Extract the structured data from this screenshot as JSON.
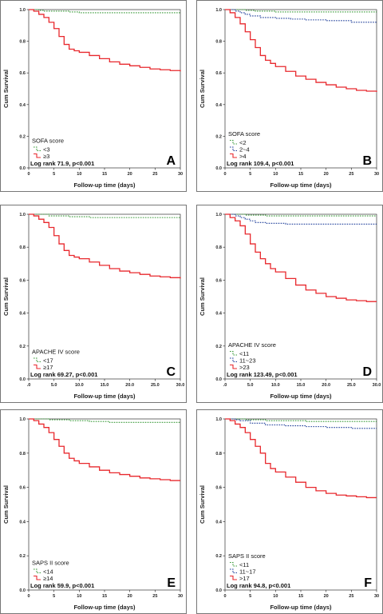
{
  "chart_data": [
    {
      "type": "line",
      "panel": "A",
      "xlabel": "Follow-up time (days)",
      "ylabel": "Cum Survival",
      "xlim": [
        0,
        30
      ],
      "ylim": [
        0.0,
        1.0
      ],
      "x_ticks": [
        "0",
        "5",
        "10",
        "15",
        "20",
        "25",
        "30"
      ],
      "y_ticks": [
        "0.0",
        "0.2",
        "0.4",
        "0.6",
        "0.8",
        "1.0"
      ],
      "legend_title": "SOFA score",
      "logrank": "Log rank 71.9, p<0.001",
      "series": [
        {
          "name": "<3",
          "color": "#3a9a3a",
          "dash": "dot",
          "x": [
            0,
            1,
            2,
            3,
            5,
            8,
            10,
            15,
            20,
            25,
            30
          ],
          "y": [
            1.0,
            1.0,
            0.995,
            0.99,
            0.99,
            0.985,
            0.98,
            0.98,
            0.98,
            0.98,
            0.98
          ]
        },
        {
          "name": "≥3",
          "color": "#e8282d",
          "dash": "solid",
          "x": [
            0,
            1,
            2,
            3,
            4,
            5,
            6,
            7,
            8,
            9,
            10,
            12,
            14,
            16,
            18,
            20,
            22,
            24,
            26,
            28,
            30
          ],
          "y": [
            1.0,
            0.99,
            0.97,
            0.95,
            0.92,
            0.88,
            0.83,
            0.78,
            0.75,
            0.74,
            0.73,
            0.71,
            0.69,
            0.67,
            0.655,
            0.645,
            0.635,
            0.625,
            0.62,
            0.615,
            0.61
          ]
        }
      ]
    },
    {
      "type": "line",
      "panel": "B",
      "xlabel": "Follow-up time (days)",
      "ylabel": "Cum Survival",
      "xlim": [
        0,
        30
      ],
      "ylim": [
        0.0,
        1.0
      ],
      "x_ticks": [
        "0",
        "5",
        "10",
        "15",
        "20",
        "25",
        "30"
      ],
      "y_ticks": [
        "0.0",
        "0.2",
        "0.4",
        "0.6",
        "0.8",
        "1.0"
      ],
      "legend_title": "SOFA score",
      "logrank": "Log rank 109.4, p<0.001",
      "series": [
        {
          "name": "<2",
          "color": "#3a9a3a",
          "dash": "dot",
          "x": [
            0,
            2,
            4,
            6,
            10,
            15,
            20,
            25,
            30
          ],
          "y": [
            1.0,
            1.0,
            0.995,
            0.99,
            0.985,
            0.985,
            0.985,
            0.985,
            0.985
          ]
        },
        {
          "name": "2~4",
          "color": "#1f3f9a",
          "dash": "dot",
          "x": [
            0,
            2,
            3,
            4,
            5,
            7,
            10,
            13,
            16,
            20,
            25,
            30
          ],
          "y": [
            1.0,
            0.99,
            0.98,
            0.97,
            0.96,
            0.95,
            0.945,
            0.94,
            0.935,
            0.93,
            0.92,
            0.915
          ]
        },
        {
          "name": ">4",
          "color": "#e8282d",
          "dash": "solid",
          "x": [
            0,
            1,
            2,
            3,
            4,
            5,
            6,
            7,
            8,
            9,
            10,
            12,
            14,
            16,
            18,
            20,
            22,
            24,
            26,
            28,
            30
          ],
          "y": [
            1.0,
            0.98,
            0.95,
            0.91,
            0.86,
            0.81,
            0.76,
            0.71,
            0.68,
            0.66,
            0.64,
            0.61,
            0.58,
            0.56,
            0.54,
            0.525,
            0.51,
            0.5,
            0.49,
            0.485,
            0.48
          ]
        }
      ]
    },
    {
      "type": "line",
      "panel": "C",
      "xlabel": "Follow-up time (days)",
      "ylabel": "Cum Survival",
      "xlim": [
        0,
        30
      ],
      "ylim": [
        0.0,
        1.0
      ],
      "x_ticks": [
        ".0",
        "5.0",
        "10.0",
        "15.0",
        "20.0",
        "25.0",
        "30.0"
      ],
      "y_ticks": [
        "0.0",
        "0.2",
        "0.4",
        "0.6",
        "0.8",
        "1.0"
      ],
      "legend_title": "APACHE IV score",
      "logrank": "Log rank 69.27,  p<0.001",
      "series": [
        {
          "name": "<17",
          "color": "#3a9a3a",
          "dash": "dot",
          "x": [
            0,
            2,
            4,
            8,
            12,
            16,
            20,
            25,
            30
          ],
          "y": [
            1.0,
            1.0,
            0.99,
            0.985,
            0.98,
            0.98,
            0.98,
            0.98,
            0.98
          ]
        },
        {
          "name": "≥17",
          "color": "#e8282d",
          "dash": "solid",
          "x": [
            0,
            1,
            2,
            3,
            4,
            5,
            6,
            7,
            8,
            9,
            10,
            12,
            14,
            16,
            18,
            20,
            22,
            24,
            26,
            28,
            30
          ],
          "y": [
            1.0,
            0.99,
            0.97,
            0.95,
            0.92,
            0.87,
            0.82,
            0.78,
            0.75,
            0.74,
            0.73,
            0.71,
            0.69,
            0.67,
            0.655,
            0.645,
            0.635,
            0.625,
            0.62,
            0.615,
            0.61
          ]
        }
      ]
    },
    {
      "type": "line",
      "panel": "D",
      "xlabel": "Follow-up time (days)",
      "ylabel": "Cum Survival",
      "xlim": [
        0,
        30
      ],
      "ylim": [
        0.0,
        1.0
      ],
      "x_ticks": [
        ".0",
        "5.0",
        "10.0",
        "15.0",
        "20.0",
        "25.0",
        "30.0"
      ],
      "y_ticks": [
        "0.0",
        "0.2",
        "0.4",
        "0.6",
        "0.8",
        "1.0"
      ],
      "legend_title": "APACHE IV score",
      "logrank": "Log rank 123.49,  p<0.001",
      "series": [
        {
          "name": "<11",
          "color": "#3a9a3a",
          "dash": "dot",
          "x": [
            0,
            2,
            4,
            8,
            12,
            16,
            20,
            25,
            30
          ],
          "y": [
            1.0,
            1.0,
            0.995,
            0.99,
            0.99,
            0.99,
            0.99,
            0.99,
            0.99
          ]
        },
        {
          "name": "11~23",
          "color": "#1f3f9a",
          "dash": "dot",
          "x": [
            0,
            2,
            3,
            4,
            5,
            6,
            8,
            12,
            16,
            20,
            25,
            30
          ],
          "y": [
            1.0,
            0.99,
            0.98,
            0.97,
            0.96,
            0.95,
            0.945,
            0.94,
            0.94,
            0.94,
            0.94,
            0.94
          ]
        },
        {
          "name": ">23",
          "color": "#e8282d",
          "dash": "solid",
          "x": [
            0,
            1,
            2,
            3,
            4,
            5,
            6,
            7,
            8,
            9,
            10,
            12,
            14,
            16,
            18,
            20,
            22,
            24,
            26,
            28,
            30
          ],
          "y": [
            1.0,
            0.98,
            0.96,
            0.93,
            0.88,
            0.82,
            0.77,
            0.73,
            0.7,
            0.67,
            0.65,
            0.61,
            0.57,
            0.54,
            0.52,
            0.5,
            0.49,
            0.48,
            0.475,
            0.47,
            0.47
          ]
        }
      ]
    },
    {
      "type": "line",
      "panel": "E",
      "xlabel": "Follow-up time (days)",
      "ylabel": "Cum Survival",
      "xlim": [
        0,
        30
      ],
      "ylim": [
        0.0,
        1.0
      ],
      "x_ticks": [
        "0",
        "5",
        "10",
        "15",
        "20",
        "25",
        "30"
      ],
      "y_ticks": [
        "0.0",
        "0.2",
        "0.4",
        "0.6",
        "0.8",
        "1.0"
      ],
      "legend_title": "SAPS II score",
      "logrank": "Log rank 59.9,  p<0.001",
      "series": [
        {
          "name": "<14",
          "color": "#3a9a3a",
          "dash": "dot",
          "x": [
            0,
            2,
            4,
            8,
            12,
            16,
            20,
            25,
            30
          ],
          "y": [
            1.0,
            1.0,
            0.995,
            0.99,
            0.985,
            0.98,
            0.98,
            0.98,
            0.98
          ]
        },
        {
          "name": "≥14",
          "color": "#e8282d",
          "dash": "solid",
          "x": [
            0,
            1,
            2,
            3,
            4,
            5,
            6,
            7,
            8,
            9,
            10,
            12,
            14,
            16,
            18,
            20,
            22,
            24,
            26,
            28,
            30
          ],
          "y": [
            1.0,
            0.99,
            0.97,
            0.95,
            0.92,
            0.88,
            0.84,
            0.8,
            0.77,
            0.755,
            0.74,
            0.72,
            0.7,
            0.685,
            0.675,
            0.665,
            0.655,
            0.65,
            0.645,
            0.64,
            0.64
          ]
        }
      ]
    },
    {
      "type": "line",
      "panel": "F",
      "xlabel": "Follow-up time (days)",
      "ylabel": "Cum Survival",
      "xlim": [
        0,
        30
      ],
      "ylim": [
        0.0,
        1.0
      ],
      "x_ticks": [
        "0",
        "5",
        "10",
        "15",
        "20",
        "25",
        "30"
      ],
      "y_ticks": [
        "0.0",
        "0.2",
        "0.4",
        "0.6",
        "0.8",
        "1.0"
      ],
      "legend_title": "SAPS II score",
      "logrank": "Log rank 94.8,  p<0.001",
      "series": [
        {
          "name": "<11",
          "color": "#3a9a3a",
          "dash": "dot",
          "x": [
            0,
            2,
            4,
            8,
            12,
            16,
            20,
            25,
            30
          ],
          "y": [
            1.0,
            1.0,
            0.995,
            0.99,
            0.99,
            0.985,
            0.985,
            0.985,
            0.985
          ]
        },
        {
          "name": "11~17",
          "color": "#1f3f9a",
          "dash": "dot",
          "x": [
            0,
            2,
            3,
            5,
            8,
            12,
            16,
            20,
            25,
            30
          ],
          "y": [
            1.0,
            0.995,
            0.99,
            0.975,
            0.965,
            0.96,
            0.955,
            0.95,
            0.945,
            0.945
          ]
        },
        {
          "name": ">17",
          "color": "#e8282d",
          "dash": "solid",
          "x": [
            0,
            1,
            2,
            3,
            4,
            5,
            6,
            7,
            8,
            9,
            10,
            12,
            14,
            16,
            18,
            20,
            22,
            24,
            26,
            28,
            30
          ],
          "y": [
            1.0,
            0.99,
            0.97,
            0.95,
            0.92,
            0.88,
            0.84,
            0.8,
            0.74,
            0.71,
            0.69,
            0.66,
            0.63,
            0.6,
            0.58,
            0.565,
            0.555,
            0.55,
            0.545,
            0.54,
            0.54
          ]
        }
      ]
    }
  ]
}
